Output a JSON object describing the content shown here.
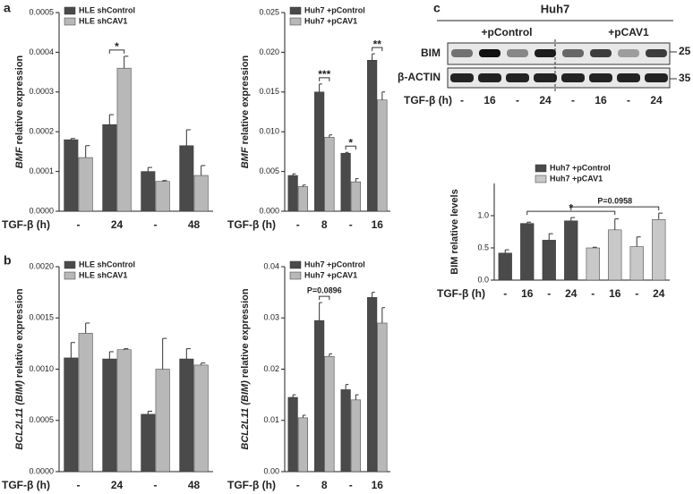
{
  "panel_labels": [
    "a",
    "b",
    "c"
  ],
  "blot": {
    "title": "Huh7",
    "groups": [
      "+pControl",
      "+pCAV1"
    ],
    "rows": [
      "BIM",
      "β-ACTIN"
    ],
    "markers": [
      "25",
      "35"
    ],
    "xlabel": "TGF-β (h)",
    "lanes": [
      "-",
      "16",
      "-",
      "24",
      "-",
      "16",
      "-",
      "24"
    ]
  },
  "chart_data": [
    {
      "type": "bar",
      "ylabel": {
        "gene": "BMF",
        "text": "relative expression"
      },
      "xlabel": "TGF-β (h)",
      "categories": [
        "-",
        "24",
        "-",
        "48"
      ],
      "series": [
        {
          "name": "HLE shControl",
          "color": "#4a4a4a",
          "values": [
            0.00018,
            0.000218,
            0.0001,
            0.000165
          ],
          "errors": [
            3e-06,
            2.5e-05,
            1e-05,
            4e-05
          ]
        },
        {
          "name": "HLE shCAV1",
          "color": "#b8b8b8",
          "values": [
            0.000135,
            0.00036,
            7.5e-05,
            9e-05
          ],
          "errors": [
            3e-05,
            3e-05,
            2e-06,
            2.5e-05
          ]
        }
      ],
      "ylim": [
        0,
        0.0005
      ],
      "yticks": [
        {
          "value": 0,
          "label": "0.0000"
        },
        {
          "value": 0.0001,
          "label": "0.0001"
        },
        {
          "value": 0.0002,
          "label": "0.0002"
        },
        {
          "value": 0.0003,
          "label": "0.0003"
        },
        {
          "value": 0.0004,
          "label": "0.0004"
        },
        {
          "value": 0.0005,
          "label": "0.0005"
        }
      ],
      "annotations": [
        "*"
      ]
    },
    {
      "type": "bar",
      "ylabel": {
        "gene": "BMF",
        "text": "relative expression"
      },
      "xlabel": "TGF-β (h)",
      "categories": [
        "-",
        "8",
        "-",
        "16"
      ],
      "series": [
        {
          "name": "Huh7 +pControl",
          "color": "#4a4a4a",
          "values": [
            0.0045,
            0.015,
            0.0073,
            0.019
          ],
          "errors": [
            0.0002,
            0.001,
            0.0001,
            0.0008
          ]
        },
        {
          "name": "Huh7 +pCAV1",
          "color": "#b8b8b8",
          "values": [
            0.0031,
            0.0093,
            0.0037,
            0.014
          ],
          "errors": [
            0.0002,
            0.0003,
            0.0004,
            0.001
          ]
        }
      ],
      "ylim": [
        0,
        0.025
      ],
      "yticks": [
        {
          "value": 0,
          "label": "0.000"
        },
        {
          "value": 0.005,
          "label": "0.005"
        },
        {
          "value": 0.01,
          "label": "0.010"
        },
        {
          "value": 0.015,
          "label": "0.015"
        },
        {
          "value": 0.02,
          "label": "0.020"
        },
        {
          "value": 0.025,
          "label": "0.025"
        }
      ],
      "annotations": [
        "***",
        "*",
        "**"
      ]
    },
    {
      "type": "bar",
      "ylabel": {
        "gene": "BCL2L11 (BIM)",
        "text": "relative expression"
      },
      "xlabel": "TGF-β (h)",
      "categories": [
        "-",
        "24",
        "-",
        "48"
      ],
      "series": [
        {
          "name": "HLE shControl",
          "color": "#4a4a4a",
          "values": [
            0.00111,
            0.0011,
            0.00056,
            0.0011
          ],
          "errors": [
            0.00015,
            7e-05,
            3e-05,
            0.0001
          ]
        },
        {
          "name": "HLE shCAV1",
          "color": "#b8b8b8",
          "values": [
            0.00135,
            0.00119,
            0.001,
            0.00104
          ],
          "errors": [
            0.0001,
            1e-05,
            0.0003,
            2e-05
          ]
        }
      ],
      "ylim": [
        0,
        0.002
      ],
      "yticks": [
        {
          "value": 0,
          "label": "0.0000"
        },
        {
          "value": 0.0005,
          "label": "0.0005"
        },
        {
          "value": 0.001,
          "label": "0.0010"
        },
        {
          "value": 0.0015,
          "label": "0.0015"
        },
        {
          "value": 0.002,
          "label": "0.0020"
        }
      ],
      "annotations": []
    },
    {
      "type": "bar",
      "ylabel": {
        "gene": "BCL2L11 (BIM)",
        "text": "relative expression"
      },
      "xlabel": "TGF-β (h)",
      "categories": [
        "-",
        "8",
        "-",
        "16"
      ],
      "series": [
        {
          "name": "Huh7 +pControl",
          "color": "#4a4a4a",
          "values": [
            0.0145,
            0.0295,
            0.016,
            0.034
          ],
          "errors": [
            0.0005,
            0.0035,
            0.001,
            0.001
          ]
        },
        {
          "name": "Huh7 +pCAV1",
          "color": "#b8b8b8",
          "values": [
            0.0105,
            0.0225,
            0.014,
            0.029
          ],
          "errors": [
            0.0005,
            0.0005,
            0.001,
            0.003
          ]
        }
      ],
      "ylim": [
        0,
        0.04
      ],
      "yticks": [
        {
          "value": 0,
          "label": "0.00"
        },
        {
          "value": 0.01,
          "label": "0.01"
        },
        {
          "value": 0.02,
          "label": "0.02"
        },
        {
          "value": 0.03,
          "label": "0.03"
        },
        {
          "value": 0.04,
          "label": "0.04"
        }
      ],
      "annotations": [
        "P=0.0896"
      ]
    },
    {
      "type": "bar",
      "ylabel": {
        "text": "BIM relative levels"
      },
      "xlabel": "TGF-β (h)",
      "categories": [
        "-",
        "16",
        "-",
        "24",
        "-",
        "16",
        "-",
        "24"
      ],
      "series": [
        {
          "name": "Huh7 +pControl",
          "color": "#4a4a4a",
          "values": [
            0.42,
            0.88,
            0.62,
            0.92,
            null,
            null,
            null,
            null
          ],
          "errors": [
            0.05,
            0.02,
            0.1,
            0.05,
            null,
            null,
            null,
            null
          ]
        },
        {
          "name": "Huh7 +pCAV1",
          "color": "#c8c8c8",
          "values": [
            null,
            null,
            null,
            null,
            0.5,
            0.78,
            0.52,
            0.94
          ],
          "errors": [
            null,
            null,
            null,
            null,
            0.01,
            0.17,
            0.15,
            0.1
          ]
        }
      ],
      "ylim": [
        0,
        1.5
      ],
      "yticks": [
        {
          "value": 0,
          "label": "0.0"
        },
        {
          "value": 0.5,
          "label": "0.5"
        },
        {
          "value": 1,
          "label": "1.0"
        }
      ],
      "annotations": [
        "*",
        "P=0.0958"
      ]
    }
  ]
}
